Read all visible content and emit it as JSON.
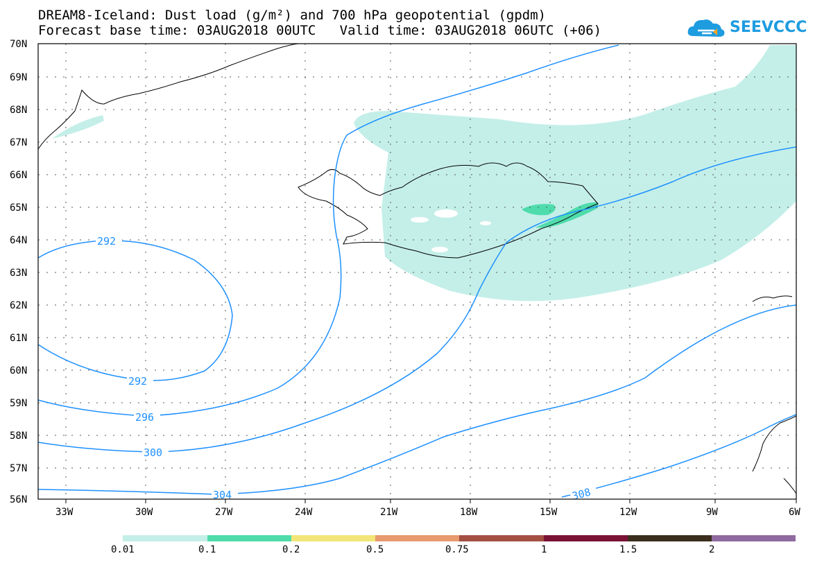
{
  "header": {
    "title_line1": "DREAM8-Iceland: Dust load (g/m²) and 700 hPa geopotential (gpdm)",
    "title_line2": "Forecast base time: 03AUG2018 00UTC   Valid time: 03AUG2018 06UTC (+06)",
    "logo_text": "SEEVCCC"
  },
  "map": {
    "lat_labels": [
      "70N",
      "69N",
      "68N",
      "67N",
      "66N",
      "65N",
      "64N",
      "63N",
      "62N",
      "61N",
      "60N",
      "59N",
      "58N",
      "57N",
      "56N"
    ],
    "lon_labels": [
      "33W",
      "30W",
      "27W",
      "24W",
      "21W",
      "18W",
      "15W",
      "12W",
      "9W",
      "6W"
    ],
    "contour_labels": [
      "292",
      "292",
      "296",
      "300",
      "304",
      "308"
    ],
    "colors": {
      "contour": "#1e90ff",
      "dust_low": "#c4efe8",
      "dust_mid": "#4fdcad",
      "coast": "#000000"
    }
  },
  "colorbar": {
    "labels": [
      "0.01",
      "0.1",
      "0.2",
      "0.5",
      "0.75",
      "1",
      "1.5",
      "2"
    ],
    "colors": [
      "#c4efe8",
      "#50dcaa",
      "#f2e678",
      "#e89b6e",
      "#a34f42",
      "#7a1236",
      "#3b2e1c",
      "#8f6aa0"
    ]
  }
}
